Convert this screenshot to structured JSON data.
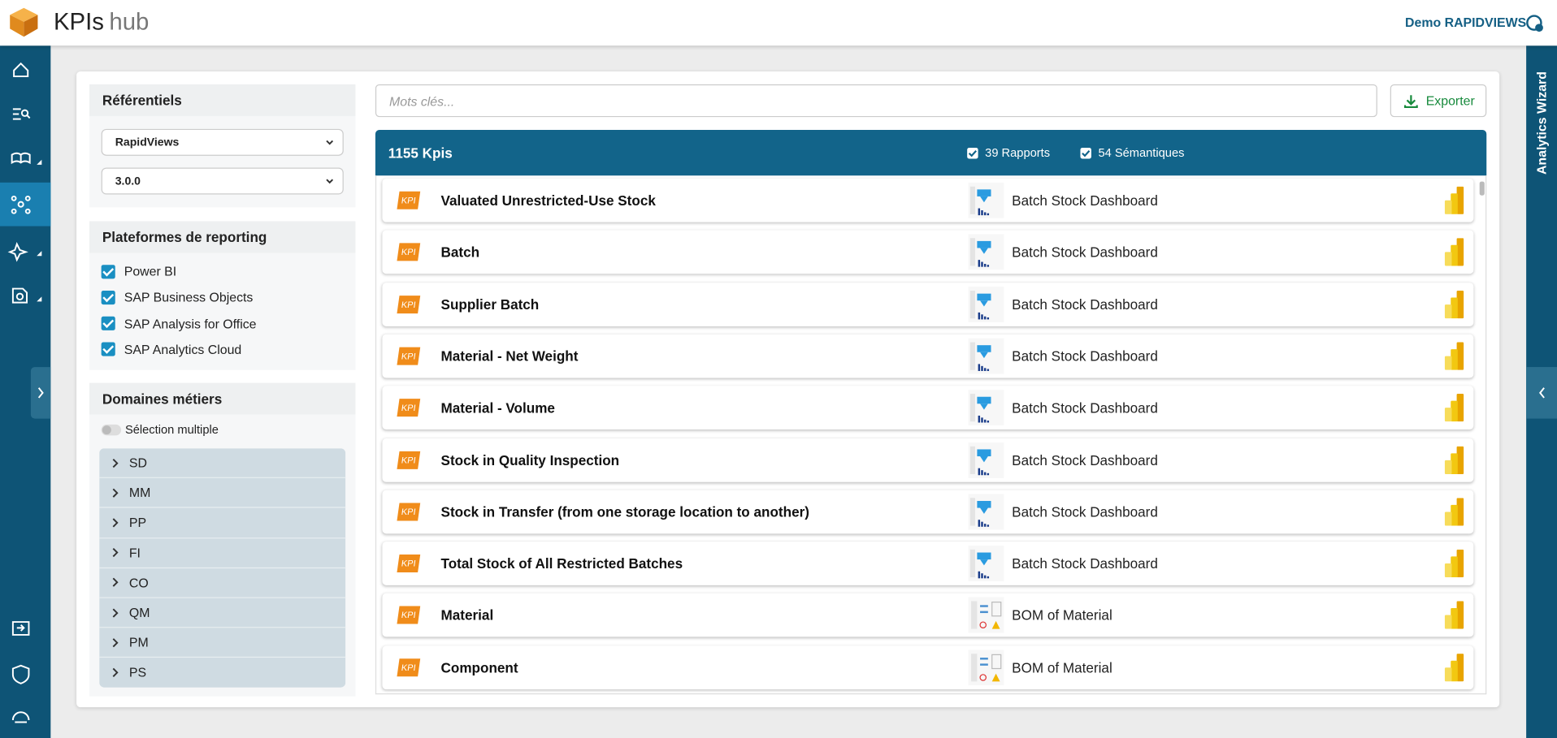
{
  "header": {
    "app_name": "KPIs",
    "app_suffix": "hub",
    "user": "Demo RAPIDVIEWS"
  },
  "right_panel": {
    "title": "Analytics Wizard"
  },
  "filters": {
    "referentiels": {
      "title": "Référentiels",
      "selects": [
        "RapidViews",
        "3.0.0"
      ]
    },
    "platforms": {
      "title": "Plateformes de reporting",
      "items": [
        {
          "label": "Power BI",
          "checked": true
        },
        {
          "label": "SAP Business Objects",
          "checked": true
        },
        {
          "label": "SAP Analysis for Office",
          "checked": true
        },
        {
          "label": "SAP Analytics Cloud",
          "checked": true
        }
      ]
    },
    "domains": {
      "title": "Domaines métiers",
      "toggle_label": "Sélection multiple",
      "items": [
        "SD",
        "MM",
        "PP",
        "FI",
        "CO",
        "QM",
        "PM",
        "PS"
      ]
    }
  },
  "search": {
    "placeholder": "Mots clés...",
    "export_label": "Exporter"
  },
  "results": {
    "count_label": "1155 Kpis",
    "rapports": {
      "label": "39 Rapports",
      "checked": true
    },
    "semantiques": {
      "label": "54 Sémantiques",
      "checked": true
    },
    "badge": "KPI",
    "rows": [
      {
        "kpi": "Valuated Unrestricted-Use Stock",
        "report": "Batch Stock Dashboard"
      },
      {
        "kpi": "Batch",
        "report": "Batch Stock Dashboard"
      },
      {
        "kpi": "Supplier Batch",
        "report": "Batch Stock Dashboard"
      },
      {
        "kpi": "Material - Net Weight",
        "report": "Batch Stock Dashboard"
      },
      {
        "kpi": "Material - Volume",
        "report": "Batch Stock Dashboard"
      },
      {
        "kpi": "Stock in Quality Inspection",
        "report": "Batch Stock Dashboard"
      },
      {
        "kpi": "Stock in Transfer (from one storage location to another)",
        "report": "Batch Stock Dashboard"
      },
      {
        "kpi": "Total Stock of All Restricted Batches",
        "report": "Batch Stock Dashboard"
      },
      {
        "kpi": "Material",
        "report": "BOM of Material"
      },
      {
        "kpi": "Component",
        "report": "BOM of Material"
      }
    ]
  }
}
